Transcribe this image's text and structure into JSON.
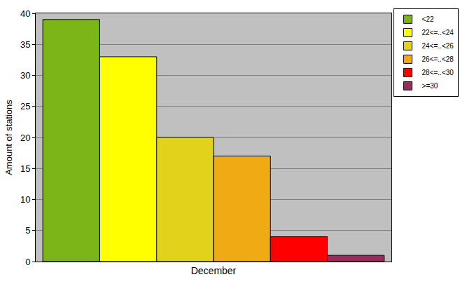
{
  "chart_data": {
    "type": "bar",
    "y_label": "Amount of stations",
    "categories": [
      "December"
    ],
    "series": [
      {
        "name": "<22",
        "color": "#7cb518",
        "values": [
          39
        ]
      },
      {
        "name": "22<=..<24",
        "color": "#ffff00",
        "values": [
          33
        ]
      },
      {
        "name": "24<=..<26",
        "color": "#e1d21c",
        "values": [
          20
        ]
      },
      {
        "name": "26<=..<28",
        "color": "#f0aa14",
        "values": [
          17
        ]
      },
      {
        "name": "28<=..<30",
        "color": "#ff0000",
        "values": [
          4
        ]
      },
      {
        "name": ">=30",
        "color": "#a0285a",
        "values": [
          1
        ]
      }
    ],
    "ylim": [
      0,
      40
    ],
    "yticks": [
      0,
      5,
      10,
      15,
      20,
      25,
      30,
      35,
      40
    ],
    "grid": true,
    "legend": "top right"
  }
}
